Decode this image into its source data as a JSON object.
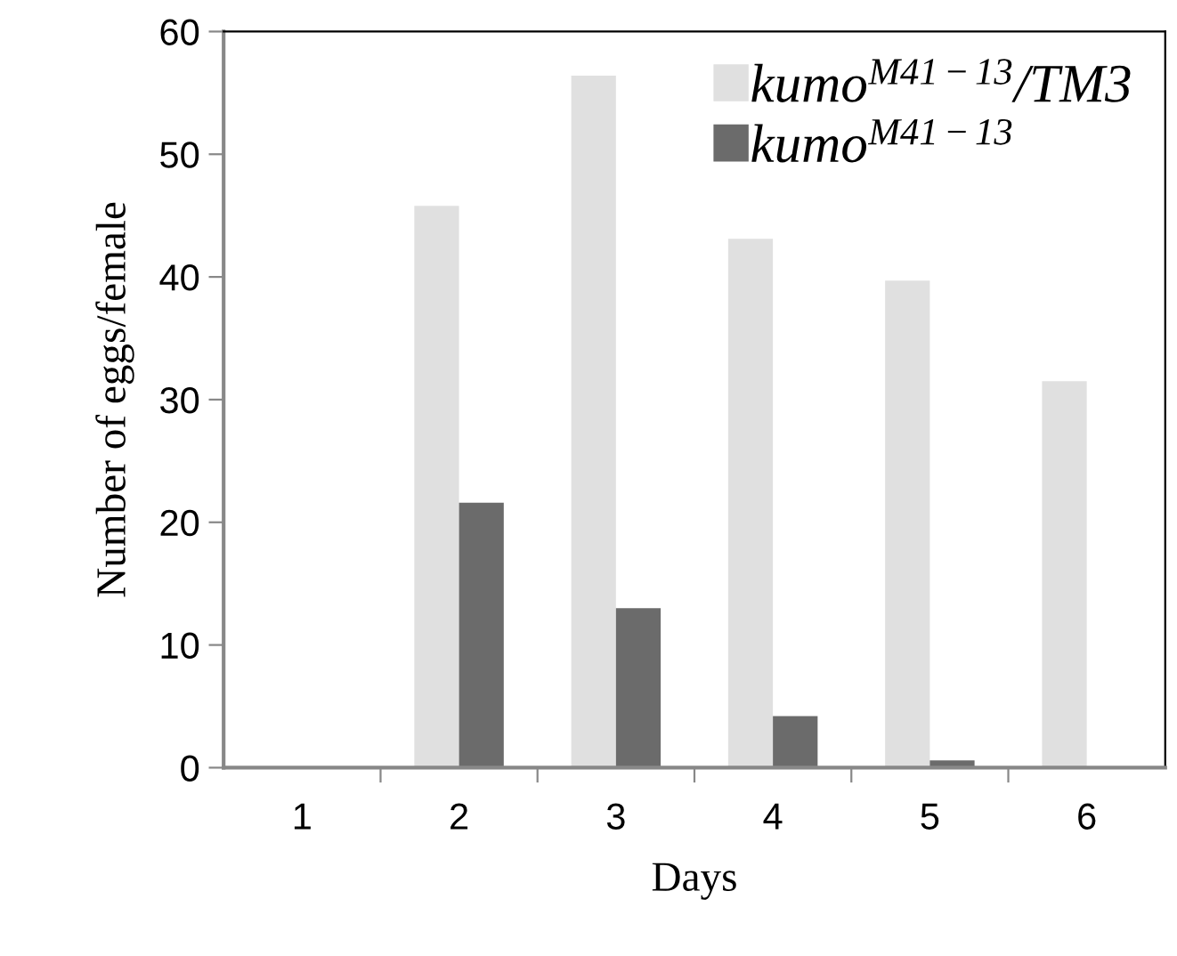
{
  "chart_data": {
    "type": "bar",
    "xlabel": "Days",
    "ylabel": "Number of eggs/female",
    "categories": [
      "1",
      "2",
      "3",
      "4",
      "5",
      "6"
    ],
    "series": [
      {
        "name": "kumo$^{M41−13}$/TM3",
        "color": "#e0e0e0",
        "values": [
          0,
          45.8,
          56.4,
          43.1,
          39.7,
          31.5
        ]
      },
      {
        "name": "kumo$^{M41−13}$",
        "color": "#6b6b6b",
        "values": [
          0,
          21.6,
          13.0,
          4.2,
          0.6,
          0
        ]
      }
    ],
    "ylim": [
      0,
      60
    ],
    "yticks": [
      0,
      10,
      20,
      30,
      40,
      50,
      60
    ],
    "grid": false,
    "legend": "top right"
  }
}
